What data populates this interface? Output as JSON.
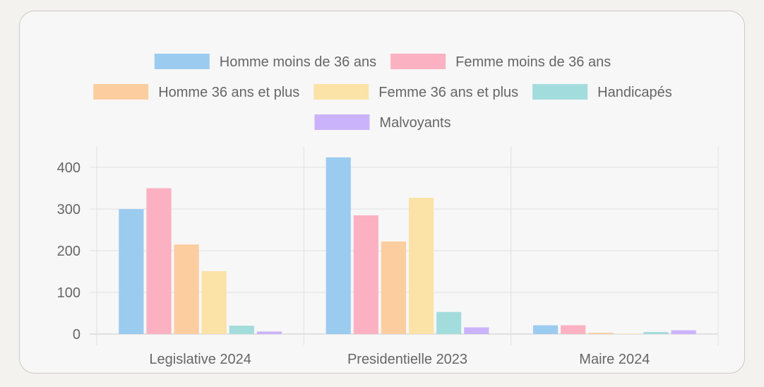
{
  "chart_data": {
    "type": "bar",
    "categories": [
      "Legislative 2024",
      "Presidentielle 2023",
      "Maire 2024"
    ],
    "series": [
      {
        "name": "Homme moins de 36 ans",
        "values": [
          300,
          424,
          21
        ],
        "color": "#9ccbf0"
      },
      {
        "name": "Femme moins de 36 ans",
        "values": [
          350,
          285,
          21
        ],
        "color": "#fbb1c2"
      },
      {
        "name": "Homme 36 ans et plus",
        "values": [
          215,
          222,
          3
        ],
        "color": "#fbcd9f"
      },
      {
        "name": "Femme 36 ans et plus",
        "values": [
          151,
          327,
          1
        ],
        "color": "#fbe2a6"
      },
      {
        "name": "Handicapés",
        "values": [
          20,
          53,
          5
        ],
        "color": "#a3dcdc"
      },
      {
        "name": "Malvoyants",
        "values": [
          6,
          16,
          9
        ],
        "color": "#cbb3fb"
      }
    ],
    "yticks": [
      0,
      100,
      200,
      300,
      400
    ],
    "ylim": [
      0,
      400
    ],
    "legend_position": "top",
    "grid": true
  }
}
